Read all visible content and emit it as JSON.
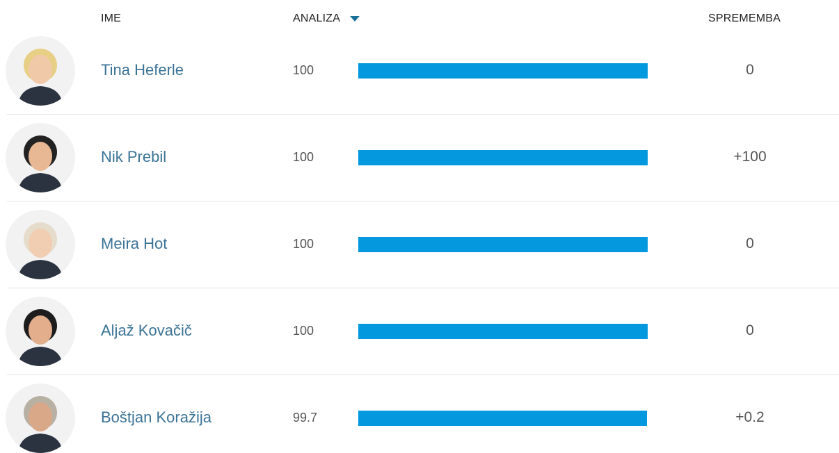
{
  "header": {
    "name": "IME",
    "score": "ANALIZA",
    "change": "SPREMEMBA"
  },
  "rows": [
    {
      "name": "Tina Heferle",
      "score": 100,
      "change": "0"
    },
    {
      "name": "Nik Prebil",
      "score": 100,
      "change": "+100"
    },
    {
      "name": "Meira Hot",
      "score": 100,
      "change": "0"
    },
    {
      "name": "Aljaž Kovačič",
      "score": 100,
      "change": "0"
    },
    {
      "name": "Boštjan Koražija",
      "score": 99.7,
      "change": "+0.2"
    }
  ],
  "bar_color": "#0499de"
}
